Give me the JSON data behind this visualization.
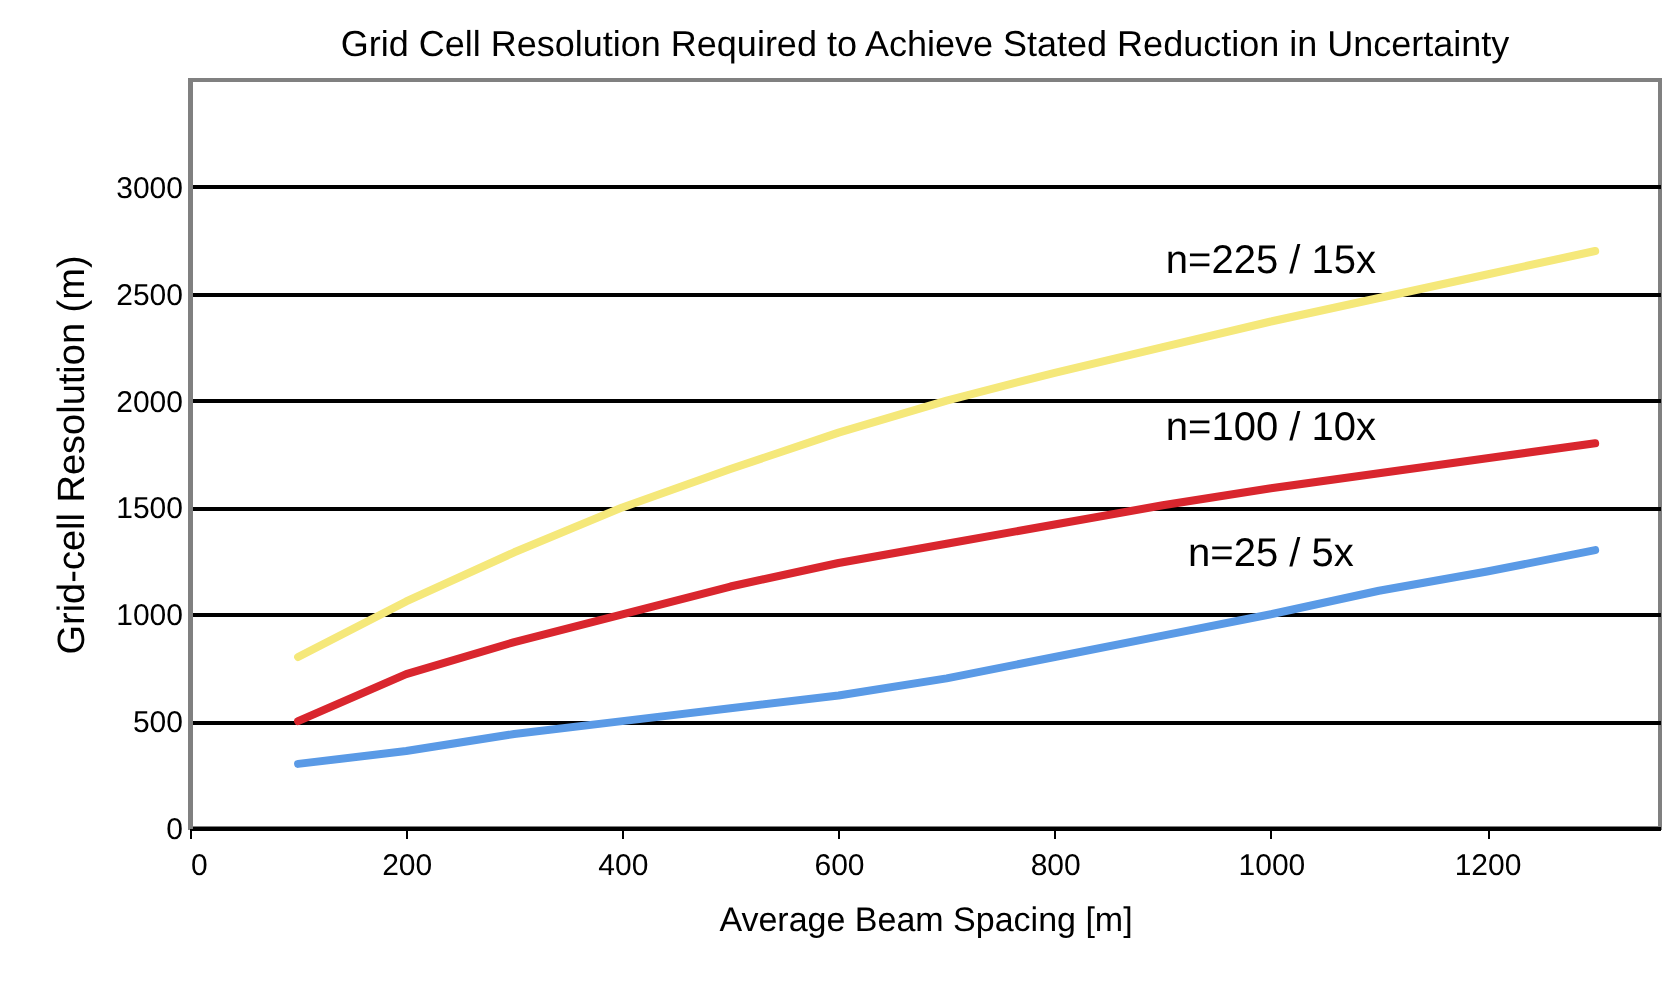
{
  "chart_data": {
    "type": "line",
    "title": "Grid Cell Resolution Required to Achieve Stated Reduction in Uncertainty",
    "xlabel": "Average Beam Spacing [m]",
    "ylabel": "Grid-cell Resolution (m)",
    "x": [
      100,
      200,
      300,
      400,
      500,
      600,
      700,
      800,
      900,
      1000,
      1100,
      1200,
      1300
    ],
    "series": [
      {
        "name": "n=225 / 15x",
        "color": "#f5e87a",
        "values": [
          800,
          1060,
          1290,
          1500,
          1680,
          1850,
          2000,
          2130,
          2250,
          2370,
          2480,
          2590,
          2700
        ]
      },
      {
        "name": "n=100 / 10x",
        "color": "#d9262e",
        "values": [
          500,
          720,
          870,
          1000,
          1130,
          1240,
          1330,
          1420,
          1510,
          1590,
          1660,
          1730,
          1800
        ]
      },
      {
        "name": "n=25 / 5x",
        "color": "#5a9ae6",
        "values": [
          300,
          360,
          440,
          500,
          560,
          620,
          700,
          800,
          900,
          1000,
          1110,
          1200,
          1300
        ]
      }
    ],
    "xlim": [
      0,
      1360
    ],
    "xticks": [
      0,
      200,
      400,
      600,
      800,
      1000,
      1200
    ],
    "ylim": [
      0,
      3500
    ],
    "yticks": [
      0,
      500,
      1000,
      1500,
      2000,
      2500,
      3000
    ],
    "grid": "y",
    "legend": false,
    "marker": "none",
    "line_style": "solid"
  }
}
